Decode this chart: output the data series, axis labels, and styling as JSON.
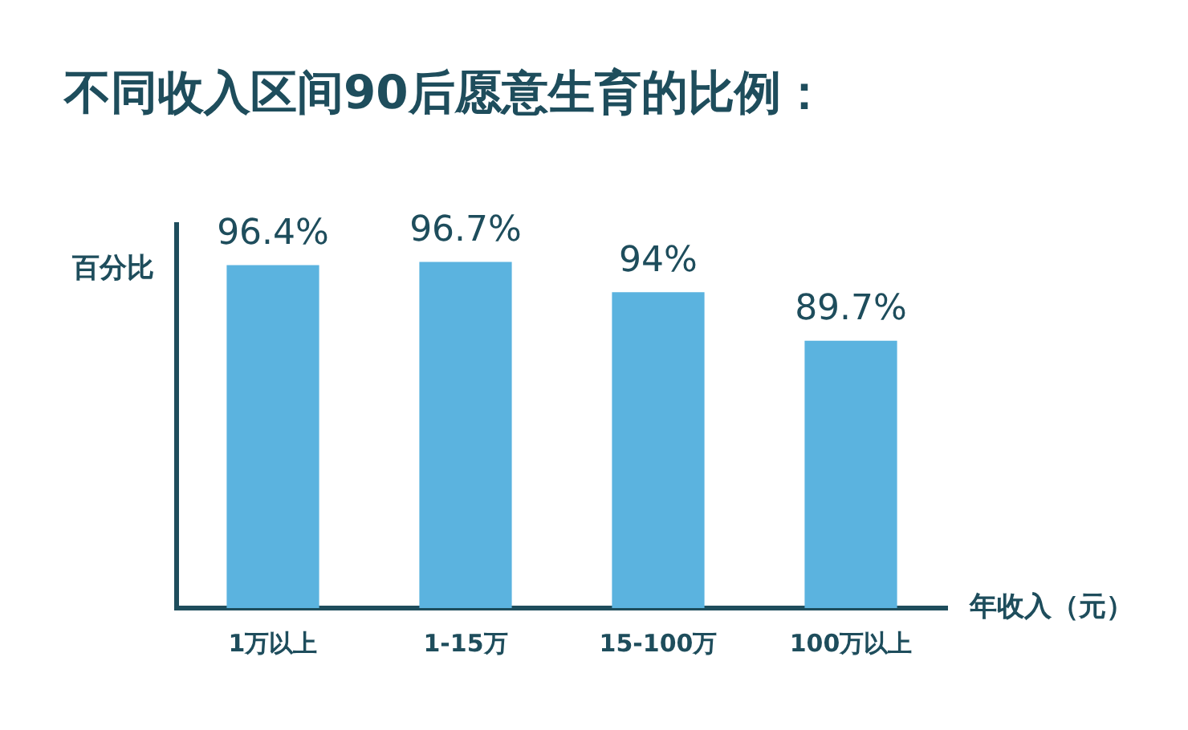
{
  "chart_data": {
    "type": "bar",
    "title": "不同收入区间90后愿意生育的比例：",
    "ylabel": "百分比",
    "xlabel": "年收入（元）",
    "categories": [
      "1万以上",
      "1-15万",
      "15-100万",
      "100万以上"
    ],
    "values": [
      96.4,
      96.7,
      94,
      89.7
    ],
    "value_labels": [
      "96.4%",
      "96.7%",
      "94%",
      "89.7%"
    ],
    "color": "#5bb3df",
    "ylim": [
      66,
      100
    ],
    "tick_labels": "x"
  }
}
